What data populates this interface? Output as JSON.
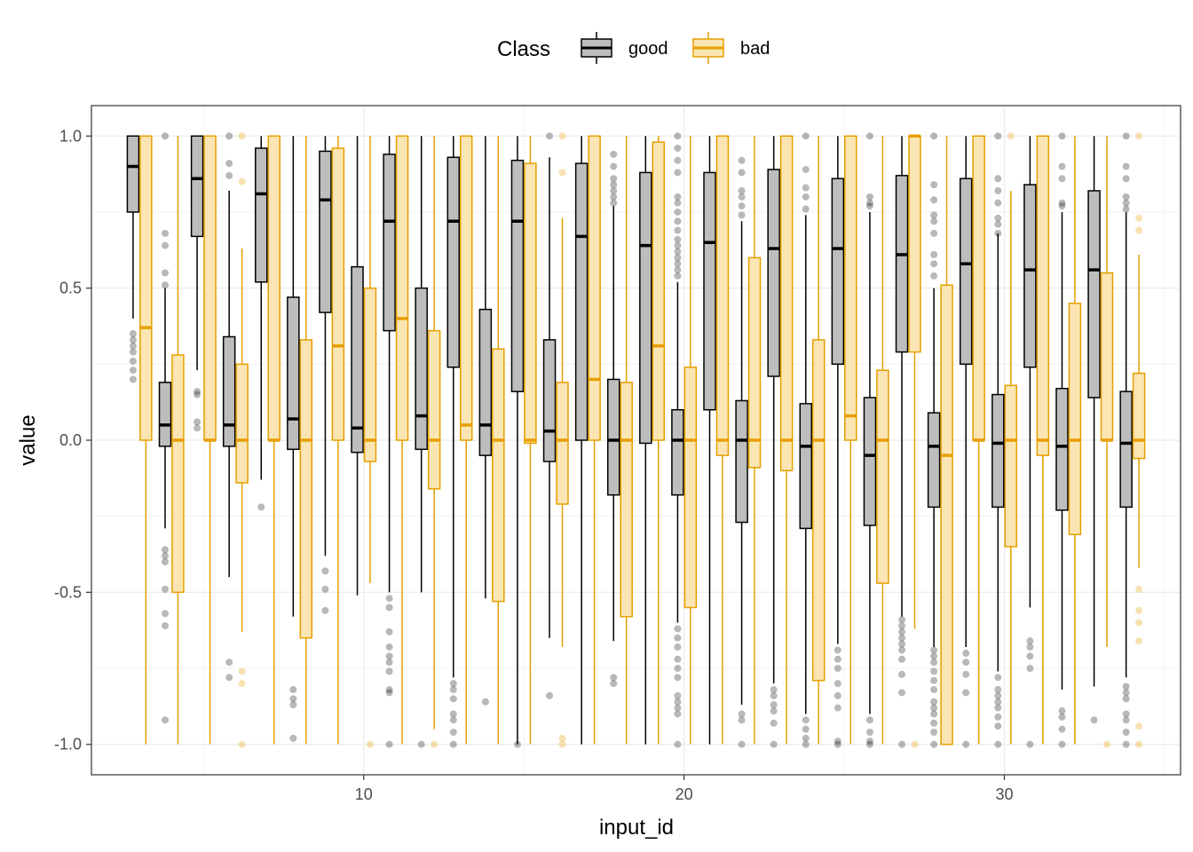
{
  "colors": {
    "good_line": "#000000",
    "good_fill": "#bdbdbd",
    "bad_line": "#e69f00",
    "bad_fill": "#fbe5b3",
    "grid": "#ebebeb",
    "panel_border": "#333333"
  },
  "legend": {
    "title": "Class",
    "items": [
      "good",
      "bad"
    ]
  },
  "chart_data": {
    "type": "box",
    "xlabel": "input_id",
    "ylabel": "value",
    "xlim": [
      1.5,
      35.5
    ],
    "ylim": [
      -1.1,
      1.1
    ],
    "x_ticks": [
      10,
      20,
      30
    ],
    "y_ticks": [
      -1.0,
      -0.5,
      0.0,
      0.5,
      1.0
    ],
    "y_tick_labels": [
      "-1.0",
      "-0.5",
      "0.0",
      "0.5",
      "1.0"
    ],
    "grid": true,
    "legend_position": "top",
    "series": [
      {
        "name": "good",
        "boxes": [
          {
            "x": 3,
            "whislo": 0.4,
            "q1": 0.75,
            "med": 0.9,
            "q3": 1.0,
            "whishi": 1.0,
            "fliers": [
              0.2,
              0.23,
              0.26,
              0.29,
              0.31,
              0.33,
              0.35
            ]
          },
          {
            "x": 4,
            "whislo": -0.29,
            "q1": -0.02,
            "med": 0.05,
            "q3": 0.19,
            "whishi": 0.5,
            "fliers": [
              1.0,
              0.68,
              0.64,
              0.55,
              0.51,
              -0.36,
              -0.38,
              -0.4,
              -0.49,
              -0.57,
              -0.61,
              -0.92
            ]
          },
          {
            "x": 5,
            "whislo": 0.23,
            "q1": 0.67,
            "med": 0.86,
            "q3": 1.0,
            "whishi": 1.0,
            "fliers": [
              0.15,
              0.16,
              0.06,
              0.04
            ]
          },
          {
            "x": 6,
            "whislo": -0.45,
            "q1": -0.02,
            "med": 0.05,
            "q3": 0.34,
            "whishi": 0.82,
            "fliers": [
              1.0,
              0.91,
              0.87,
              -0.73,
              -0.78
            ]
          },
          {
            "x": 7,
            "whislo": -0.13,
            "q1": 0.52,
            "med": 0.81,
            "q3": 0.96,
            "whishi": 1.0,
            "fliers": [
              -0.22
            ]
          },
          {
            "x": 8,
            "whislo": -0.58,
            "q1": -0.03,
            "med": 0.07,
            "q3": 0.47,
            "whishi": 1.0,
            "fliers": [
              -0.82,
              -0.85,
              -0.87,
              -0.98
            ]
          },
          {
            "x": 9,
            "whislo": -0.38,
            "q1": 0.42,
            "med": 0.79,
            "q3": 0.95,
            "whishi": 1.0,
            "fliers": [
              -0.43,
              -0.49,
              -0.56
            ]
          },
          {
            "x": 10,
            "whislo": -0.51,
            "q1": -0.04,
            "med": 0.04,
            "q3": 0.57,
            "whishi": 1.0,
            "fliers": []
          },
          {
            "x": 11,
            "whislo": -0.5,
            "q1": 0.36,
            "med": 0.72,
            "q3": 0.94,
            "whishi": 1.0,
            "fliers": [
              -0.52,
              -0.55,
              -0.63,
              -0.68,
              -0.71,
              -0.73,
              -0.76,
              -0.82,
              -0.83,
              -1.0
            ]
          },
          {
            "x": 12,
            "whislo": -0.5,
            "q1": -0.03,
            "med": 0.08,
            "q3": 0.5,
            "whishi": 1.0,
            "fliers": [
              -1.0
            ]
          },
          {
            "x": 13,
            "whislo": -0.78,
            "q1": 0.24,
            "med": 0.72,
            "q3": 0.93,
            "whishi": 1.0,
            "fliers": [
              -0.8,
              -0.82,
              -0.85,
              -0.9,
              -0.92,
              -0.96,
              -1.0
            ]
          },
          {
            "x": 14,
            "whislo": -0.52,
            "q1": -0.05,
            "med": 0.05,
            "q3": 0.43,
            "whishi": 1.0,
            "fliers": [
              -0.86
            ]
          },
          {
            "x": 15,
            "whislo": -1.0,
            "q1": 0.16,
            "med": 0.72,
            "q3": 0.92,
            "whishi": 1.0,
            "fliers": [
              -1.0
            ]
          },
          {
            "x": 16,
            "whislo": -0.65,
            "q1": -0.07,
            "med": 0.03,
            "q3": 0.33,
            "whishi": 0.93,
            "fliers": [
              1.0,
              -0.84
            ]
          },
          {
            "x": 17,
            "whislo": -1.0,
            "q1": 0.0,
            "med": 0.67,
            "q3": 0.91,
            "whishi": 1.0,
            "fliers": []
          },
          {
            "x": 18,
            "whislo": -0.66,
            "q1": -0.18,
            "med": 0.0,
            "q3": 0.2,
            "whishi": 0.77,
            "fliers": [
              0.94,
              0.9,
              0.86,
              0.84,
              0.82,
              0.8,
              0.78,
              -0.78,
              -0.8
            ]
          },
          {
            "x": 19,
            "whislo": -1.0,
            "q1": -0.01,
            "med": 0.64,
            "q3": 0.88,
            "whishi": 1.0,
            "fliers": []
          },
          {
            "x": 20,
            "whislo": -0.6,
            "q1": -0.18,
            "med": 0.0,
            "q3": 0.1,
            "whishi": 0.52,
            "fliers": [
              1.0,
              0.96,
              0.92,
              0.88,
              0.8,
              0.78,
              0.75,
              0.72,
              0.69,
              0.66,
              0.64,
              0.62,
              0.6,
              0.58,
              0.56,
              0.54,
              -0.62,
              -0.65,
              -0.68,
              -0.72,
              -0.75,
              -0.78,
              -0.84,
              -0.86,
              -0.88,
              -0.9,
              -1.0
            ]
          },
          {
            "x": 21,
            "whislo": -1.0,
            "q1": 0.1,
            "med": 0.65,
            "q3": 0.88,
            "whishi": 1.0,
            "fliers": []
          },
          {
            "x": 22,
            "whislo": -0.87,
            "q1": -0.27,
            "med": 0.0,
            "q3": 0.13,
            "whishi": 0.72,
            "fliers": [
              0.92,
              0.88,
              0.82,
              0.8,
              0.77,
              0.74,
              -0.9,
              -0.92,
              -1.0
            ]
          },
          {
            "x": 23,
            "whislo": -0.8,
            "q1": 0.21,
            "med": 0.63,
            "q3": 0.89,
            "whishi": 1.0,
            "fliers": [
              -0.82,
              -0.84,
              -0.87,
              -0.89,
              -0.93,
              -1.0
            ]
          },
          {
            "x": 24,
            "whislo": -0.9,
            "q1": -0.29,
            "med": -0.02,
            "q3": 0.12,
            "whishi": 0.74,
            "fliers": [
              1.0,
              0.89,
              0.83,
              0.8,
              0.76,
              -0.92,
              -0.95,
              -0.98,
              -1.0
            ]
          },
          {
            "x": 25,
            "whislo": -0.67,
            "q1": 0.25,
            "med": 0.63,
            "q3": 0.86,
            "whishi": 1.0,
            "fliers": [
              -0.69,
              -0.72,
              -0.75,
              -0.8,
              -0.84,
              -0.88,
              -0.99,
              -1.0
            ]
          },
          {
            "x": 26,
            "whislo": -0.9,
            "q1": -0.28,
            "med": -0.05,
            "q3": 0.14,
            "whishi": 0.75,
            "fliers": [
              1.0,
              0.8,
              0.78,
              0.77,
              -0.92,
              -0.96,
              -0.99,
              -1.0
            ]
          },
          {
            "x": 27,
            "whislo": -0.58,
            "q1": 0.29,
            "med": 0.61,
            "q3": 0.87,
            "whishi": 1.0,
            "fliers": [
              -0.59,
              -0.61,
              -0.63,
              -0.65,
              -0.67,
              -0.69,
              -0.72,
              -0.77,
              -0.83,
              -1.0
            ]
          },
          {
            "x": 28,
            "whislo": -0.68,
            "q1": -0.22,
            "med": -0.02,
            "q3": 0.09,
            "whishi": 0.5,
            "fliers": [
              1.0,
              0.84,
              0.79,
              0.74,
              0.72,
              0.68,
              0.61,
              0.58,
              0.54,
              -0.69,
              -0.71,
              -0.73,
              -0.76,
              -0.79,
              -0.82,
              -0.86,
              -0.88,
              -0.9,
              -0.93,
              -0.96,
              -1.0
            ]
          },
          {
            "x": 29,
            "whislo": -0.68,
            "q1": 0.25,
            "med": 0.58,
            "q3": 0.86,
            "whishi": 1.0,
            "fliers": [
              -0.7,
              -0.73,
              -0.77,
              -0.83,
              -1.0
            ]
          },
          {
            "x": 30,
            "whislo": -0.76,
            "q1": -0.22,
            "med": -0.01,
            "q3": 0.15,
            "whishi": 0.68,
            "fliers": [
              1.0,
              0.86,
              0.82,
              0.78,
              0.73,
              0.71,
              0.68,
              -0.78,
              -0.82,
              -0.84,
              -0.86,
              -0.88,
              -0.91,
              -0.94,
              -1.0
            ]
          },
          {
            "x": 31,
            "whislo": -0.55,
            "q1": 0.24,
            "med": 0.56,
            "q3": 0.84,
            "whishi": 1.0,
            "fliers": [
              -0.66,
              -0.68,
              -0.71,
              -0.75,
              -1.0
            ]
          },
          {
            "x": 32,
            "whislo": -0.82,
            "q1": -0.23,
            "med": -0.02,
            "q3": 0.17,
            "whishi": 0.75,
            "fliers": [
              1.0,
              0.9,
              0.86,
              0.78,
              0.77,
              -0.89,
              -0.91,
              -0.95,
              -1.0
            ]
          },
          {
            "x": 33,
            "whislo": -0.81,
            "q1": 0.14,
            "med": 0.56,
            "q3": 0.82,
            "whishi": 1.0,
            "fliers": [
              -0.92
            ]
          },
          {
            "x": 34,
            "whislo": -0.78,
            "q1": -0.22,
            "med": -0.01,
            "q3": 0.16,
            "whishi": 0.75,
            "fliers": [
              1.0,
              0.9,
              0.86,
              0.8,
              0.78,
              0.76,
              -0.81,
              -0.83,
              -0.85,
              -0.9,
              -0.92,
              -0.96,
              -1.0
            ]
          }
        ]
      },
      {
        "name": "bad",
        "boxes": [
          {
            "x": 3,
            "whislo": -1.0,
            "q1": 0.0,
            "med": 0.37,
            "q3": 1.0,
            "whishi": 1.0,
            "fliers": []
          },
          {
            "x": 4,
            "whislo": -1.0,
            "q1": -0.5,
            "med": 0.0,
            "q3": 0.28,
            "whishi": 1.0,
            "fliers": []
          },
          {
            "x": 5,
            "whislo": -1.0,
            "q1": 0.0,
            "med": 0.0,
            "q3": 1.0,
            "whishi": 1.0,
            "fliers": []
          },
          {
            "x": 6,
            "whislo": -0.63,
            "q1": -0.14,
            "med": 0.0,
            "q3": 0.25,
            "whishi": 0.63,
            "fliers": [
              1.0,
              0.85,
              -0.76,
              -0.8,
              -1.0
            ]
          },
          {
            "x": 7,
            "whislo": -1.0,
            "q1": 0.0,
            "med": 0.0,
            "q3": 1.0,
            "whishi": 1.0,
            "fliers": []
          },
          {
            "x": 8,
            "whislo": -1.0,
            "q1": -0.65,
            "med": 0.0,
            "q3": 0.33,
            "whishi": 1.0,
            "fliers": []
          },
          {
            "x": 9,
            "whislo": -1.0,
            "q1": 0.0,
            "med": 0.31,
            "q3": 0.96,
            "whishi": 1.0,
            "fliers": []
          },
          {
            "x": 10,
            "whislo": -0.47,
            "q1": -0.07,
            "med": 0.0,
            "q3": 0.5,
            "whishi": 1.0,
            "fliers": [
              -1.0
            ]
          },
          {
            "x": 11,
            "whislo": -1.0,
            "q1": 0.0,
            "med": 0.4,
            "q3": 1.0,
            "whishi": 1.0,
            "fliers": []
          },
          {
            "x": 12,
            "whislo": -0.95,
            "q1": -0.16,
            "med": 0.0,
            "q3": 0.36,
            "whishi": 1.0,
            "fliers": [
              -1.0
            ]
          },
          {
            "x": 13,
            "whislo": -1.0,
            "q1": 0.0,
            "med": 0.05,
            "q3": 1.0,
            "whishi": 1.0,
            "fliers": []
          },
          {
            "x": 14,
            "whislo": -1.0,
            "q1": -0.53,
            "med": 0.0,
            "q3": 0.3,
            "whishi": 1.0,
            "fliers": []
          },
          {
            "x": 15,
            "whislo": -1.0,
            "q1": -0.01,
            "med": 0.0,
            "q3": 0.91,
            "whishi": 1.0,
            "fliers": []
          },
          {
            "x": 16,
            "whislo": -0.68,
            "q1": -0.21,
            "med": 0.0,
            "q3": 0.19,
            "whishi": 0.73,
            "fliers": [
              1.0,
              0.88,
              -0.98,
              -1.0
            ]
          },
          {
            "x": 17,
            "whislo": -1.0,
            "q1": 0.0,
            "med": 0.2,
            "q3": 1.0,
            "whishi": 1.0,
            "fliers": []
          },
          {
            "x": 18,
            "whislo": -1.0,
            "q1": -0.58,
            "med": 0.0,
            "q3": 0.19,
            "whishi": 1.0,
            "fliers": []
          },
          {
            "x": 19,
            "whislo": -1.0,
            "q1": 0.0,
            "med": 0.31,
            "q3": 0.98,
            "whishi": 1.0,
            "fliers": []
          },
          {
            "x": 20,
            "whislo": -1.0,
            "q1": -0.55,
            "med": 0.0,
            "q3": 0.24,
            "whishi": 1.0,
            "fliers": []
          },
          {
            "x": 21,
            "whislo": -1.0,
            "q1": -0.05,
            "med": 0.0,
            "q3": 1.0,
            "whishi": 1.0,
            "fliers": []
          },
          {
            "x": 22,
            "whislo": -1.0,
            "q1": -0.09,
            "med": 0.0,
            "q3": 0.6,
            "whishi": 1.0,
            "fliers": []
          },
          {
            "x": 23,
            "whislo": -1.0,
            "q1": -0.1,
            "med": 0.0,
            "q3": 1.0,
            "whishi": 1.0,
            "fliers": []
          },
          {
            "x": 24,
            "whislo": -1.0,
            "q1": -0.79,
            "med": 0.0,
            "q3": 0.33,
            "whishi": 1.0,
            "fliers": []
          },
          {
            "x": 25,
            "whislo": -1.0,
            "q1": 0.0,
            "med": 0.08,
            "q3": 1.0,
            "whishi": 1.0,
            "fliers": []
          },
          {
            "x": 26,
            "whislo": -1.0,
            "q1": -0.47,
            "med": 0.0,
            "q3": 0.23,
            "whishi": 1.0,
            "fliers": []
          },
          {
            "x": 27,
            "whislo": -0.62,
            "q1": 0.29,
            "med": 1.0,
            "q3": 1.0,
            "whishi": 1.0,
            "fliers": [
              -1.0
            ]
          },
          {
            "x": 28,
            "whislo": -1.0,
            "q1": -1.0,
            "med": -0.05,
            "q3": 0.51,
            "whishi": 1.0,
            "fliers": []
          },
          {
            "x": 29,
            "whislo": -1.0,
            "q1": 0.0,
            "med": 0.0,
            "q3": 1.0,
            "whishi": 1.0,
            "fliers": []
          },
          {
            "x": 30,
            "whislo": -1.0,
            "q1": -0.35,
            "med": 0.0,
            "q3": 0.18,
            "whishi": 0.82,
            "fliers": [
              1.0
            ]
          },
          {
            "x": 31,
            "whislo": -1.0,
            "q1": -0.05,
            "med": 0.0,
            "q3": 1.0,
            "whishi": 1.0,
            "fliers": []
          },
          {
            "x": 32,
            "whislo": -1.0,
            "q1": -0.31,
            "med": 0.0,
            "q3": 0.45,
            "whishi": 1.0,
            "fliers": []
          },
          {
            "x": 33,
            "whislo": -0.68,
            "q1": 0.0,
            "med": 0.0,
            "q3": 0.55,
            "whishi": 1.0,
            "fliers": [
              -1.0
            ]
          },
          {
            "x": 34,
            "whislo": -0.42,
            "q1": -0.06,
            "med": 0.0,
            "q3": 0.22,
            "whishi": 0.61,
            "fliers": [
              1.0,
              0.73,
              0.69,
              -0.49,
              -0.56,
              -0.6,
              -0.66,
              -0.94,
              -1.0
            ]
          }
        ]
      }
    ]
  }
}
